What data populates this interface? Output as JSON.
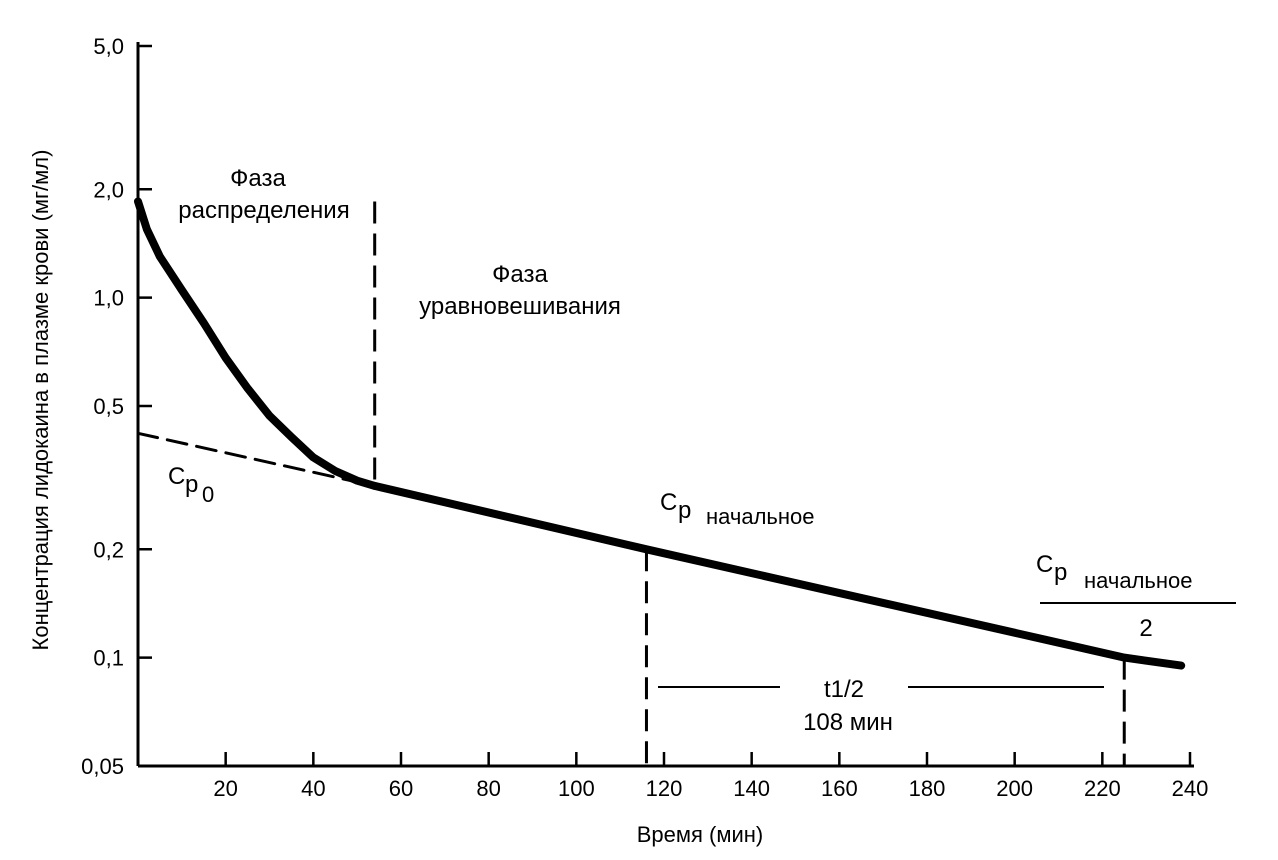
{
  "chart_data": {
    "type": "line",
    "title": "",
    "xlabel": "Время (мин)",
    "ylabel": "Концентрация лидокаина в плазме крови (мг/мл)",
    "x_ticks": [
      20,
      40,
      60,
      80,
      100,
      120,
      140,
      160,
      180,
      200,
      220,
      240
    ],
    "y_ticks": [
      {
        "value": 0.05,
        "label": "0,05"
      },
      {
        "value": 0.1,
        "label": "0,1"
      },
      {
        "value": 0.2,
        "label": "0,2"
      },
      {
        "value": 0.5,
        "label": "0,5"
      },
      {
        "value": 1.0,
        "label": "1,0"
      },
      {
        "value": 2.0,
        "label": "2,0"
      },
      {
        "value": 5.0,
        "label": "5,0"
      }
    ],
    "xlim": [
      0,
      240
    ],
    "ylim": [
      0.05,
      5.0
    ],
    "y_scale": "log",
    "grid": false,
    "series": [
      {
        "style": "solid-thick",
        "x": [
          0,
          2,
          5,
          10,
          15,
          20,
          25,
          30,
          35,
          40,
          45,
          50,
          54
        ],
        "y": [
          1.85,
          1.55,
          1.3,
          1.05,
          0.85,
          0.68,
          0.56,
          0.47,
          0.41,
          0.36,
          0.33,
          0.31,
          0.3
        ]
      },
      {
        "style": "solid-thick",
        "x": [
          54,
          116,
          225,
          238
        ],
        "y": [
          0.3,
          0.2,
          0.1,
          0.095
        ]
      },
      {
        "style": "dashed",
        "x": [
          0,
          54
        ],
        "y": [
          0.42,
          0.3
        ]
      }
    ],
    "annotations": {
      "phase1_line1": "Фаза",
      "phase1_line2": "распределения",
      "phase2_line1": "Фаза",
      "phase2_line2": "уравновешивания",
      "cp0_main": "C",
      "cp0_p": "p",
      "cp0_sub": "0",
      "cp_main": "C",
      "cp_p": "p",
      "cp_sub": "начальное",
      "cp_half_main": "C",
      "cp_half_p": "p",
      "cp_half_sub": "начальное",
      "cp_half_den": "2",
      "t_half": "t1/2",
      "t_half_value": "108 мин"
    },
    "vlines": [
      {
        "x": 54,
        "y_from": 0.3,
        "y_to": 1.85
      },
      {
        "x": 116,
        "y_from": 0.05,
        "y_to": 0.2
      },
      {
        "x": 225,
        "y_from": 0.05,
        "y_to": 0.1
      }
    ]
  }
}
